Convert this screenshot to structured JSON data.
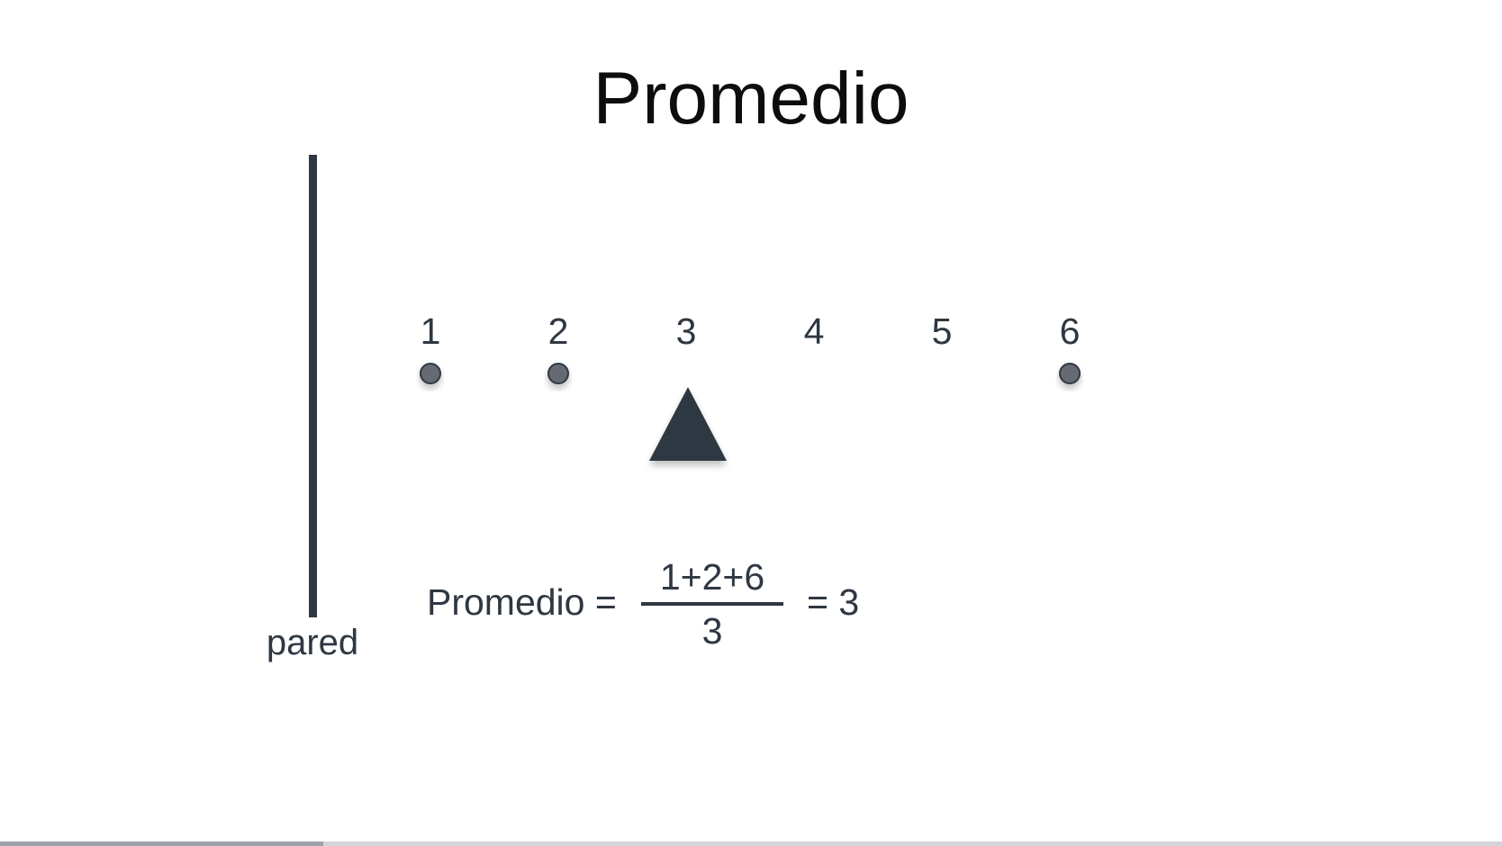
{
  "slide": {
    "title": "Promedio",
    "wall_label": "pared"
  },
  "diagram": {
    "axis_numbers": [
      "1",
      "2",
      "3",
      "4",
      "5",
      "6"
    ],
    "weights_at": [
      1,
      2,
      6
    ],
    "fulcrum_at": 3,
    "colors": {
      "ink": "#2f3742",
      "weight": "#666b72",
      "title": "#0d0d0d"
    }
  },
  "formula": {
    "label": "Promedio =",
    "numerator": "1+2+6",
    "denominator": "3",
    "result": "= 3"
  },
  "playback": {
    "progress_fraction": 0.215
  }
}
